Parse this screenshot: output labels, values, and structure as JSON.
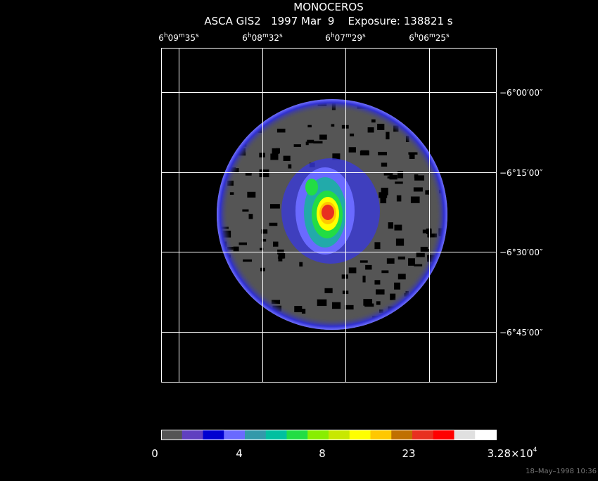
{
  "title": "MONOCEROS",
  "subtitle": "ASCA GIS2   1997 Mar  9    Exposure: 138821 s",
  "ra_labels": [
    [
      "6",
      "h",
      "09",
      "m",
      "35",
      "s"
    ],
    [
      "6",
      "h",
      "08",
      "m",
      "32",
      "s"
    ],
    [
      "6",
      "h",
      "07",
      "m",
      "29",
      "s"
    ],
    [
      "6",
      "h",
      "06",
      "m",
      "25",
      "s"
    ]
  ],
  "dec_labels": [
    "−6°00′00″",
    "−6°15′00″",
    "−6°30′00″",
    "−6°45′00″"
  ],
  "colorbar_labels": [
    [
      "0"
    ],
    [
      "4"
    ],
    [
      "8"
    ],
    [
      "23"
    ],
    [
      "3.28×10",
      "4"
    ]
  ],
  "timestamp": "18–May–1998 10:36"
}
